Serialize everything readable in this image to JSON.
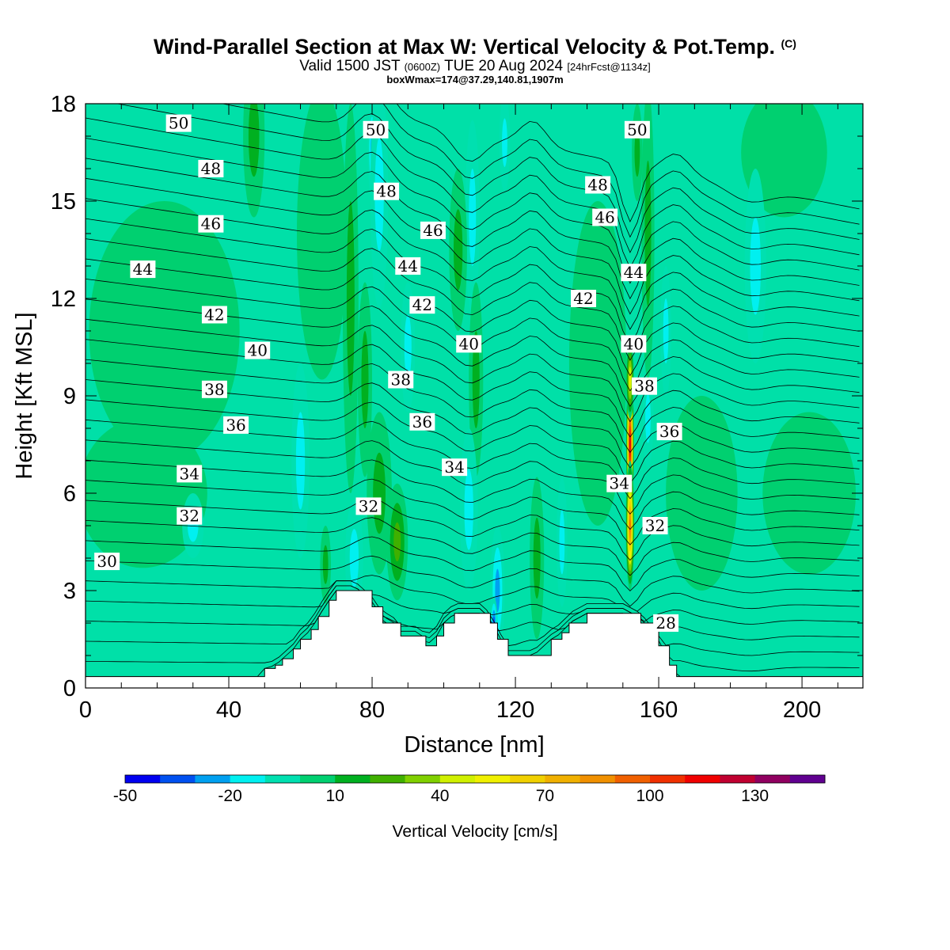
{
  "header": {
    "title": "Wind-Parallel Section at Max W: Vertical Velocity & Pot.Temp.",
    "copyright": "(C)",
    "valid_prefix": "Valid 1500 JST",
    "valid_utc": "(0600Z)",
    "valid_date": "TUE 20 Aug 2024",
    "forecast_tag": "[24hrFcst@1134z]",
    "box_info": "boxWmax=174@37.29,140.81,1907m"
  },
  "colors": {
    "background": "#00e0a8",
    "bands": [
      "#0000f0",
      "#0050f0",
      "#00a0f0",
      "#00f0f0",
      "#00e0b0",
      "#00d070",
      "#00b020",
      "#40b000",
      "#80d000",
      "#d0f000",
      "#f0f000",
      "#f0d000",
      "#f0b000",
      "#f09000",
      "#f06000",
      "#f03000",
      "#f00000",
      "#c00030",
      "#900060",
      "#600090"
    ]
  },
  "chart_data": {
    "type": "heatmap",
    "xlabel": "Distance [nm]",
    "ylabel": "Height [Kft MSL]",
    "xlim": [
      0,
      217
    ],
    "ylim": [
      0,
      18
    ],
    "xticks": [
      0,
      40,
      80,
      120,
      160,
      200
    ],
    "yticks": [
      0,
      3,
      6,
      9,
      12,
      15,
      18
    ],
    "terrain": {
      "x": [
        0,
        48,
        50,
        53,
        55,
        58,
        60,
        63,
        65,
        68,
        70,
        75,
        80,
        83,
        85,
        88,
        90,
        93,
        95,
        98,
        100,
        103,
        105,
        108,
        110,
        113,
        115,
        118,
        120,
        125,
        130,
        133,
        135,
        140,
        145,
        150,
        155,
        160,
        163,
        165,
        217
      ],
      "height": [
        0.35,
        0.35,
        0.6,
        0.7,
        0.9,
        1.2,
        1.5,
        1.8,
        2.2,
        2.7,
        3.0,
        3.0,
        2.5,
        2.0,
        2.0,
        1.6,
        1.6,
        1.6,
        1.3,
        1.6,
        2.0,
        2.3,
        2.3,
        2.3,
        2.3,
        2.0,
        1.5,
        1.0,
        1.0,
        1.0,
        1.5,
        1.7,
        2.0,
        2.3,
        2.3,
        2.3,
        2.0,
        1.3,
        0.7,
        0.35,
        0.35
      ]
    },
    "velocity_features": [
      {
        "x": 80,
        "z": 16.6,
        "w": -30,
        "sx": 1.2,
        "sz": 1.5
      },
      {
        "x": 82,
        "z": 15.2,
        "w": -15,
        "sx": 2.5,
        "sz": 3.5
      },
      {
        "x": 74,
        "z": 12.0,
        "w": 15,
        "sx": 2.2,
        "sz": 6.0
      },
      {
        "x": 108,
        "z": 14.5,
        "w": -15,
        "sx": 2.0,
        "sz": 3.0
      },
      {
        "x": 117,
        "z": 16.8,
        "w": -15,
        "sx": 1.5,
        "sz": 1.5
      },
      {
        "x": 104,
        "z": 13.5,
        "w": 15,
        "sx": 2.5,
        "sz": 2.5
      },
      {
        "x": 109,
        "z": 9.5,
        "w": 15,
        "sx": 2.0,
        "sz": 3.0
      },
      {
        "x": 90,
        "z": 10.5,
        "w": -15,
        "sx": 2.0,
        "sz": 2.0
      },
      {
        "x": 78,
        "z": 9.5,
        "w": 15,
        "sx": 2.0,
        "sz": 3.0
      },
      {
        "x": 87,
        "z": 4.5,
        "w": 30,
        "sx": 3.0,
        "sz": 1.8
      },
      {
        "x": 82,
        "z": 6.0,
        "w": 15,
        "sx": 3.5,
        "sz": 2.5
      },
      {
        "x": 75,
        "z": 4.0,
        "w": -15,
        "sx": 2.5,
        "sz": 1.8
      },
      {
        "x": 115,
        "z": 3.0,
        "w": -30,
        "sx": 2.0,
        "sz": 2.0
      },
      {
        "x": 114,
        "z": 2.0,
        "w": -40,
        "sx": 1.0,
        "sz": 0.8
      },
      {
        "x": 107,
        "z": 5.5,
        "w": -15,
        "sx": 2.5,
        "sz": 2.5
      },
      {
        "x": 126,
        "z": 4.0,
        "w": 15,
        "sx": 2.0,
        "sz": 2.5
      },
      {
        "x": 133,
        "z": 4.5,
        "w": -15,
        "sx": 1.5,
        "sz": 2.0
      },
      {
        "x": 152,
        "z": 7.5,
        "w": 130,
        "sx": 1.1,
        "sz": 2.5
      },
      {
        "x": 152,
        "z": 5.0,
        "w": 95,
        "sx": 1.2,
        "sz": 2.0
      },
      {
        "x": 152,
        "z": 9.5,
        "w": 60,
        "sx": 1.1,
        "sz": 1.2
      },
      {
        "x": 157,
        "z": 8.3,
        "w": -20,
        "sx": 1.5,
        "sz": 1.5
      },
      {
        "x": 157,
        "z": 14.0,
        "w": 15,
        "sx": 1.8,
        "sz": 4.5
      },
      {
        "x": 154,
        "z": 16.5,
        "w": 15,
        "sx": 1.5,
        "sz": 1.5
      },
      {
        "x": 162,
        "z": 11.0,
        "w": -15,
        "sx": 1.5,
        "sz": 2.0
      },
      {
        "x": 47,
        "z": 17.0,
        "w": 15,
        "sx": 3.0,
        "sz": 2.5
      },
      {
        "x": 30,
        "z": 5.0,
        "w": -15,
        "sx": 3.0,
        "sz": 1.0
      },
      {
        "x": 60,
        "z": 7.0,
        "w": -15,
        "sx": 2.5,
        "sz": 3.0
      },
      {
        "x": 67,
        "z": 3.8,
        "w": 15,
        "sx": 1.5,
        "sz": 1.2
      },
      {
        "x": 187,
        "z": 13.0,
        "w": -15,
        "sx": 3.0,
        "sz": 3.0
      }
    ],
    "green_regions": [
      {
        "x": 22,
        "z": 11.0,
        "sx": 21,
        "sz": 4.0
      },
      {
        "x": 16,
        "z": 6.0,
        "sx": 18,
        "sz": 2.3
      },
      {
        "x": 66,
        "z": 14.0,
        "sx": 7,
        "sz": 4.5
      },
      {
        "x": 143,
        "z": 10.0,
        "sx": 8,
        "sz": 5.0
      },
      {
        "x": 172,
        "z": 6.0,
        "sx": 10,
        "sz": 3.0
      },
      {
        "x": 202,
        "z": 6.0,
        "sx": 13,
        "sz": 2.5
      },
      {
        "x": 195,
        "z": 16.5,
        "sx": 12,
        "sz": 2.0
      }
    ],
    "theta_contours": [
      {
        "level": 28,
        "label": "28",
        "label_x": 162,
        "label_z": 2.0
      },
      {
        "level": 30,
        "label": "30",
        "label_x": 6,
        "label_z": 3.9
      },
      {
        "level": 32,
        "label": "32",
        "label_x": 29,
        "label_z": 5.3
      },
      {
        "level": 32,
        "label": "32",
        "label_x": 79,
        "label_z": 5.6
      },
      {
        "level": 32,
        "label": "32",
        "label_x": 159,
        "label_z": 5.0
      },
      {
        "level": 34,
        "label": "34",
        "label_x": 29,
        "label_z": 6.6
      },
      {
        "level": 34,
        "label": "34",
        "label_x": 103,
        "label_z": 6.8
      },
      {
        "level": 34,
        "label": "34",
        "label_x": 149,
        "label_z": 6.3
      },
      {
        "level": 36,
        "label": "36",
        "label_x": 42,
        "label_z": 8.1
      },
      {
        "level": 36,
        "label": "36",
        "label_x": 94,
        "label_z": 8.2
      },
      {
        "level": 36,
        "label": "36",
        "label_x": 163,
        "label_z": 7.9
      },
      {
        "level": 38,
        "label": "38",
        "label_x": 36,
        "label_z": 9.2
      },
      {
        "level": 38,
        "label": "38",
        "label_x": 88,
        "label_z": 9.5
      },
      {
        "level": 38,
        "label": "38",
        "label_x": 156,
        "label_z": 9.3
      },
      {
        "level": 40,
        "label": "40",
        "label_x": 48,
        "label_z": 10.4
      },
      {
        "level": 40,
        "label": "40",
        "label_x": 107,
        "label_z": 10.6
      },
      {
        "level": 40,
        "label": "40",
        "label_x": 153,
        "label_z": 10.6
      },
      {
        "level": 42,
        "label": "42",
        "label_x": 36,
        "label_z": 11.5
      },
      {
        "level": 42,
        "label": "42",
        "label_x": 94,
        "label_z": 11.8
      },
      {
        "level": 42,
        "label": "42",
        "label_x": 139,
        "label_z": 12.0
      },
      {
        "level": 44,
        "label": "44",
        "label_x": 16,
        "label_z": 12.9
      },
      {
        "level": 44,
        "label": "44",
        "label_x": 90,
        "label_z": 13.0
      },
      {
        "level": 44,
        "label": "44",
        "label_x": 153,
        "label_z": 12.8
      },
      {
        "level": 46,
        "label": "46",
        "label_x": 35,
        "label_z": 14.3
      },
      {
        "level": 46,
        "label": "46",
        "label_x": 97,
        "label_z": 14.1
      },
      {
        "level": 46,
        "label": "46",
        "label_x": 145,
        "label_z": 14.5
      },
      {
        "level": 48,
        "label": "48",
        "label_x": 35,
        "label_z": 16.0
      },
      {
        "level": 48,
        "label": "48",
        "label_x": 84,
        "label_z": 15.3
      },
      {
        "level": 48,
        "label": "48",
        "label_x": 143,
        "label_z": 15.5
      },
      {
        "level": 50,
        "label": "50",
        "label_x": 26,
        "label_z": 17.4
      },
      {
        "level": 50,
        "label": "50",
        "label_x": 81,
        "label_z": 17.2
      },
      {
        "level": 50,
        "label": "50",
        "label_x": 154,
        "label_z": 17.2
      }
    ],
    "colorbar": {
      "title": "Vertical Velocity [cm/s]",
      "min": -50,
      "step": 10,
      "tick_labels": [
        "-50",
        "-20",
        "10",
        "40",
        "70",
        "100",
        "130"
      ],
      "tick_values": [
        -50,
        -20,
        10,
        40,
        70,
        100,
        130
      ]
    }
  }
}
